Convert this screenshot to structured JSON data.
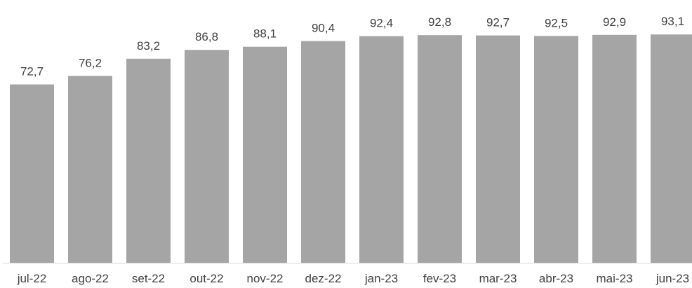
{
  "chart_data": {
    "type": "bar",
    "title": "",
    "xlabel": "",
    "ylabel": "",
    "categories": [
      "jul-22",
      "ago-22",
      "set-22",
      "out-22",
      "nov-22",
      "dez-22",
      "jan-23",
      "fev-23",
      "mar-23",
      "abr-23",
      "mai-23",
      "jun-23"
    ],
    "values": [
      72.7,
      76.2,
      83.2,
      86.8,
      88.1,
      90.4,
      92.4,
      92.8,
      92.7,
      92.5,
      92.9,
      93.1
    ],
    "value_labels": [
      "72,7",
      "76,2",
      "83,2",
      "86,8",
      "88,1",
      "90,4",
      "92,4",
      "92,8",
      "92,7",
      "92,5",
      "92,9",
      "93,1"
    ],
    "ylim": [
      0,
      100
    ],
    "grid": false,
    "legend": "none",
    "colors": {
      "bar": "#a5a5a5",
      "text": "#404040",
      "axis": "#d9d9d9"
    }
  }
}
